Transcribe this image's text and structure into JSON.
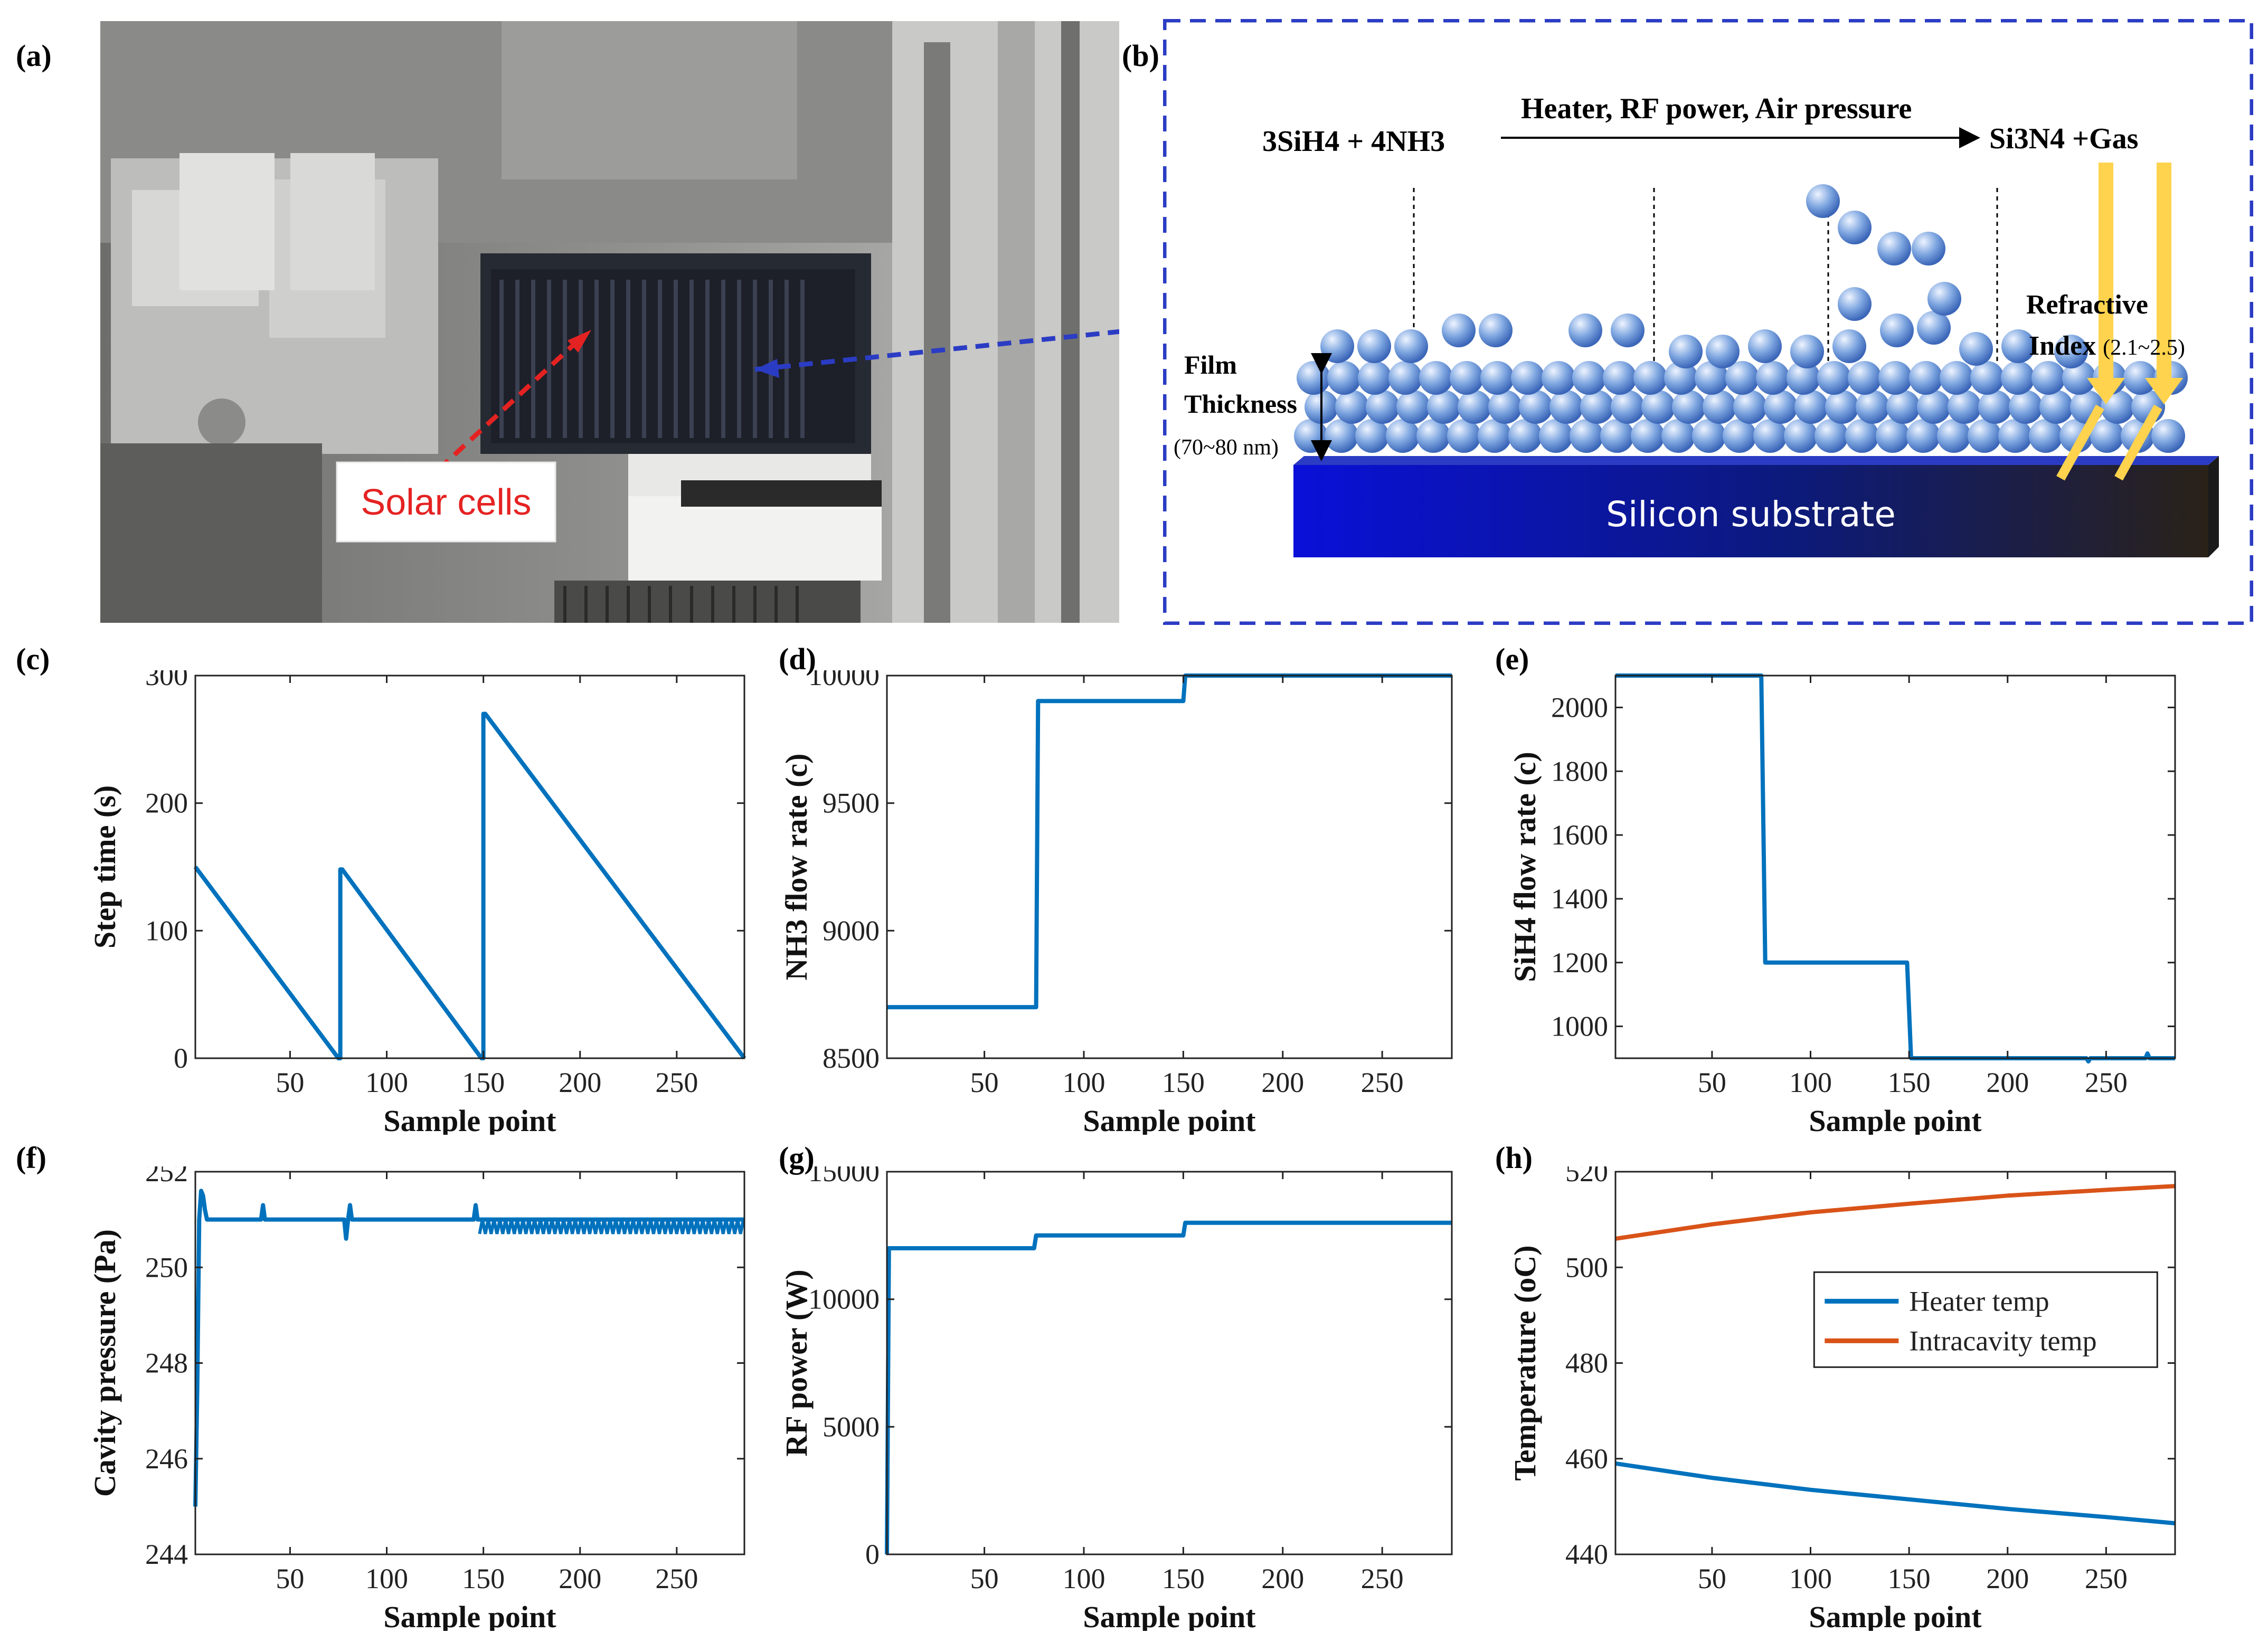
{
  "panel_labels": [
    "(a)",
    "(b)",
    "(c)",
    "(d)",
    "(e)",
    "(f)",
    "(g)",
    "(h)"
  ],
  "photo": {
    "annotation": "Solar cells"
  },
  "schematic": {
    "reactants": "3SiH4 + 4NH3",
    "conditions": "Heater, RF power, Air pressure",
    "products": "Si3N4 +Gas",
    "film_label_1": "Film",
    "film_label_2": "Thickness",
    "film_range": "(70~80 nm)",
    "refr_label_1": "Refractive",
    "refr_label_2": "Index",
    "refr_range": "(2.1~2.5)",
    "substrate": "Silicon substrate"
  },
  "chart_data": [
    {
      "id": "c",
      "type": "line",
      "xlabel": "Sample point",
      "ylabel": "Step time (s)",
      "xlim": [
        1,
        285
      ],
      "ylim": [
        0,
        300
      ],
      "xticks": [
        50,
        100,
        150,
        200,
        250
      ],
      "yticks": [
        0,
        100,
        200,
        300
      ],
      "series": [
        {
          "color": "#0072BD",
          "x": [
            1,
            75,
            76,
            76,
            77,
            149,
            150,
            150,
            151,
            285
          ],
          "y": [
            150,
            0,
            0,
            148,
            148,
            0,
            0,
            270,
            270,
            0
          ]
        }
      ]
    },
    {
      "id": "d",
      "type": "line",
      "xlabel": "Sample point",
      "ylabel": "NH3 flow rate (c)",
      "xlim": [
        1,
        285
      ],
      "ylim": [
        8500,
        10000
      ],
      "xticks": [
        50,
        100,
        150,
        200,
        250
      ],
      "yticks": [
        8500,
        9000,
        9500,
        10000
      ],
      "series": [
        {
          "color": "#0072BD",
          "x": [
            1,
            76,
            77,
            150,
            151,
            285
          ],
          "y": [
            8700,
            8700,
            9900,
            9900,
            10000,
            10000
          ]
        }
      ]
    },
    {
      "id": "e",
      "type": "line",
      "xlabel": "Sample point",
      "ylabel": "SiH4 flow rate (c)",
      "xlim": [
        1,
        285
      ],
      "ylim": [
        900,
        2100
      ],
      "xticks": [
        50,
        100,
        150,
        200,
        250
      ],
      "yticks": [
        1000,
        1200,
        1400,
        1600,
        1800,
        2000
      ],
      "series": [
        {
          "color": "#0072BD",
          "x": [
            1,
            75,
            77,
            149,
            151,
            240,
            241,
            242,
            270,
            271,
            272,
            285
          ],
          "y": [
            2100,
            2100,
            1200,
            1200,
            900,
            900,
            890,
            900,
            900,
            915,
            900,
            900
          ]
        }
      ]
    },
    {
      "id": "f",
      "type": "line",
      "xlabel": "Sample point",
      "ylabel": "Cavity pressure (Pa)",
      "xlim": [
        1,
        285
      ],
      "ylim": [
        244,
        252
      ],
      "xticks": [
        50,
        100,
        150,
        200,
        250
      ],
      "yticks": [
        244,
        246,
        248,
        250,
        252
      ],
      "series": [
        {
          "color": "#0072BD",
          "x": [
            1,
            2,
            3,
            4,
            5,
            6,
            7,
            8,
            9,
            35,
            36,
            37,
            38,
            78,
            79,
            80,
            81,
            82,
            83,
            145,
            146,
            147,
            148,
            150,
            285
          ],
          "y": [
            245,
            247.5,
            251,
            251.6,
            251.5,
            251.2,
            251,
            251,
            251,
            251,
            251.3,
            251,
            251,
            251,
            250.6,
            251,
            251.3,
            251,
            251,
            251,
            251.3,
            251,
            251,
            251,
            251
          ]
        }
      ],
      "band": {
        "x": [
          148,
          285
        ],
        "values": [
          250.7,
          251
        ]
      }
    },
    {
      "id": "g",
      "type": "line",
      "xlabel": "Sample point",
      "ylabel": "RF power (W)",
      "xlim": [
        1,
        285
      ],
      "ylim": [
        0,
        15000
      ],
      "xticks": [
        50,
        100,
        150,
        200,
        250
      ],
      "yticks": [
        0,
        5000,
        10000,
        15000
      ],
      "series": [
        {
          "color": "#0072BD",
          "x": [
            1,
            2,
            3,
            75,
            76,
            150,
            151,
            285
          ],
          "y": [
            0,
            12000,
            12000,
            12000,
            12500,
            12500,
            13000,
            13000
          ]
        }
      ]
    },
    {
      "id": "h",
      "type": "line",
      "xlabel": "Sample point",
      "ylabel": "Temperature (oC)",
      "xlim": [
        1,
        285
      ],
      "ylim": [
        440,
        520
      ],
      "xticks": [
        50,
        100,
        150,
        200,
        250
      ],
      "yticks": [
        440,
        460,
        480,
        500,
        520
      ],
      "legend": "center-right",
      "series": [
        {
          "name": "Heater temp",
          "color": "#0072BD",
          "x": [
            1,
            50,
            100,
            150,
            200,
            250,
            285
          ],
          "y": [
            459,
            456,
            453.5,
            451.5,
            449.5,
            447.8,
            446.5
          ]
        },
        {
          "name": "Intracavity temp",
          "color": "#D95319",
          "x": [
            1,
            50,
            100,
            150,
            200,
            250,
            285
          ],
          "y": [
            506,
            509,
            511.5,
            513.3,
            515,
            516.2,
            517
          ]
        }
      ]
    }
  ]
}
